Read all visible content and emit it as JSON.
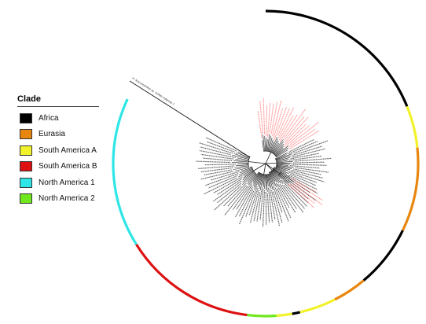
{
  "legend": {
    "title": "Clade",
    "items": [
      {
        "label": "Africa",
        "color": "#000000"
      },
      {
        "label": "Eurasia",
        "color": "#e8870f"
      },
      {
        "label": "South America A",
        "color": "#f2f22a"
      },
      {
        "label": "South America B",
        "color": "#dd1111"
      },
      {
        "label": "North America 1",
        "color": "#2ee6e6"
      },
      {
        "label": "North America 2",
        "color": "#6fe81e"
      }
    ]
  },
  "tree": {
    "highlight_color": "#ff6b6b",
    "branch_color": "#1a1a1a",
    "outgroup_label": "H. leucocephalus sp. isolate outgroup 1",
    "clade_ring": [
      {
        "clade": "Africa",
        "start": -90,
        "end": -22
      },
      {
        "clade": "South America A",
        "start": -22,
        "end": -6
      },
      {
        "clade": "Eurasia",
        "start": -6,
        "end": 26
      },
      {
        "clade": "Africa",
        "start": 26,
        "end": 50
      },
      {
        "clade": "Eurasia",
        "start": 50,
        "end": 63
      },
      {
        "clade": "South America A",
        "start": 63,
        "end": 77
      },
      {
        "clade": "Africa",
        "start": 77,
        "end": 80
      },
      {
        "clade": "South America A",
        "start": 80,
        "end": 86
      },
      {
        "clade": "North America 2",
        "start": 86,
        "end": 97
      },
      {
        "clade": "South America B",
        "start": 97,
        "end": 148
      },
      {
        "clade": "North America 1",
        "start": 148,
        "end": 205
      }
    ]
  }
}
